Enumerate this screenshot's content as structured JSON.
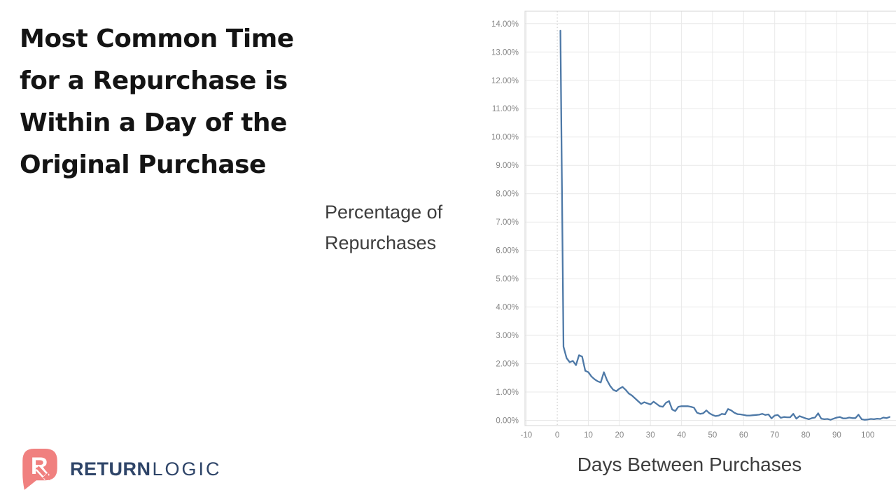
{
  "slide": {
    "title_lines": [
      "Most Common Time",
      "for a Repurchase is",
      "Within a Day of the",
      "Original Purchase"
    ]
  },
  "logo": {
    "brand_primary": "RETURN",
    "brand_secondary": "LOGIC",
    "icon_color": "#f0807f",
    "text_color": "#2e4468"
  },
  "chart_data": {
    "type": "line",
    "title": "",
    "xlabel": "Days Between Purchases",
    "ylabel": "Percentage of Repurchases",
    "ylabel_lines": [
      "Percentage of",
      "Repurchases"
    ],
    "legend": "none",
    "grid": true,
    "zero_day_reference_line": true,
    "line_color": "#4e79a7",
    "grid_color": "#e9e9e9",
    "border_color": "#d5d5d5",
    "tick_label_color": "#868686",
    "xlim": [
      -10.4,
      109.3
    ],
    "ylim": [
      -0.185,
      14.44
    ],
    "x_ticks": [
      -10,
      0,
      10,
      20,
      30,
      40,
      50,
      60,
      70,
      80,
      90,
      100
    ],
    "x_tick_labels": [
      "-10",
      "0",
      "10",
      "20",
      "30",
      "40",
      "50",
      "60",
      "70",
      "80",
      "90",
      "100"
    ],
    "y_ticks": [
      0,
      1,
      2,
      3,
      4,
      5,
      6,
      7,
      8,
      9,
      10,
      11,
      12,
      13,
      14
    ],
    "y_tick_labels": [
      "0.00%",
      "1.00%",
      "2.00%",
      "3.00%",
      "4.00%",
      "5.00%",
      "6.00%",
      "7.00%",
      "8.00%",
      "9.00%",
      "10.00%",
      "11.00%",
      "12.00%",
      "13.00%",
      "14.00%"
    ],
    "series": [
      {
        "name": "Percentage of Repurchases",
        "x_start": 1,
        "x_step": 1,
        "values": [
          13.75,
          2.6,
          2.2,
          2.05,
          2.1,
          1.95,
          2.3,
          2.25,
          1.75,
          1.7,
          1.55,
          1.45,
          1.38,
          1.34,
          1.7,
          1.42,
          1.22,
          1.08,
          1.03,
          1.12,
          1.18,
          1.08,
          0.95,
          0.88,
          0.78,
          0.68,
          0.58,
          0.64,
          0.6,
          0.56,
          0.66,
          0.58,
          0.5,
          0.48,
          0.62,
          0.68,
          0.38,
          0.33,
          0.48,
          0.5,
          0.5,
          0.5,
          0.48,
          0.45,
          0.27,
          0.23,
          0.25,
          0.35,
          0.25,
          0.19,
          0.15,
          0.17,
          0.23,
          0.21,
          0.4,
          0.35,
          0.27,
          0.22,
          0.21,
          0.19,
          0.17,
          0.17,
          0.18,
          0.19,
          0.2,
          0.23,
          0.19,
          0.21,
          0.07,
          0.17,
          0.19,
          0.09,
          0.12,
          0.11,
          0.11,
          0.23,
          0.06,
          0.15,
          0.11,
          0.07,
          0.04,
          0.08,
          0.1,
          0.25,
          0.06,
          0.04,
          0.05,
          0.02,
          0.06,
          0.1,
          0.12,
          0.07,
          0.07,
          0.1,
          0.08,
          0.08,
          0.2,
          0.04,
          0.02,
          0.03,
          0.05,
          0.04,
          0.06,
          0.05,
          0.1,
          0.08,
          0.12
        ]
      }
    ]
  }
}
